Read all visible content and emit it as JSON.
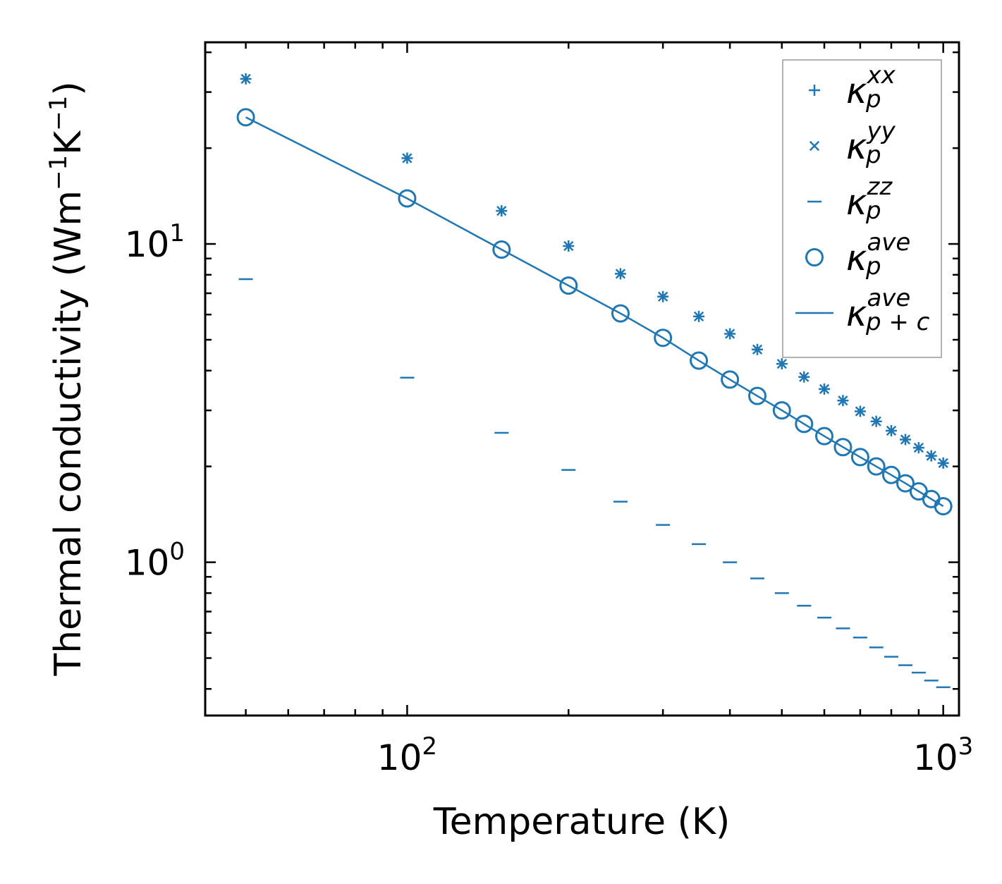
{
  "chart_data": {
    "type": "scatter",
    "xscale": "log",
    "yscale": "log",
    "xlabel": "Temperature (K)",
    "ylabel": "Thermal conductivity (Wm",
    "ylabel_parts": {
      "prefix": "Thermal conductivity (Wm",
      "exp1": "−1",
      "mid": "K",
      "exp2": "−1",
      "suffix": ")"
    },
    "xlim": [
      42,
      1070
    ],
    "ylim": [
      0.33,
      43
    ],
    "x_ticks": [
      {
        "value": 100,
        "base": "10",
        "exp": "2"
      },
      {
        "value": 1000,
        "base": "10",
        "exp": "3"
      }
    ],
    "y_ticks": [
      {
        "value": 1,
        "base": "10",
        "exp": "0"
      },
      {
        "value": 10,
        "base": "10",
        "exp": "1"
      }
    ],
    "color": "#1f77b4",
    "x": [
      50,
      100,
      150,
      200,
      250,
      300,
      350,
      400,
      450,
      500,
      550,
      600,
      650,
      700,
      750,
      800,
      850,
      900,
      950,
      1000
    ],
    "series": [
      {
        "name": "kappa_p_xx",
        "marker": "plus",
        "values": [
          33.0,
          18.6,
          12.7,
          9.85,
          8.06,
          6.83,
          5.92,
          5.22,
          4.66,
          4.2,
          3.82,
          3.5,
          3.22,
          2.98,
          2.77,
          2.59,
          2.43,
          2.29,
          2.16,
          2.05
        ]
      },
      {
        "name": "kappa_p_yy",
        "marker": "x",
        "values": [
          33.0,
          18.6,
          12.7,
          9.85,
          8.06,
          6.83,
          5.92,
          5.22,
          4.66,
          4.2,
          3.82,
          3.5,
          3.22,
          2.98,
          2.77,
          2.59,
          2.43,
          2.29,
          2.16,
          2.05
        ]
      },
      {
        "name": "kappa_p_zz",
        "marker": "hline",
        "values": [
          7.75,
          3.8,
          2.55,
          1.95,
          1.55,
          1.31,
          1.14,
          1.0,
          0.89,
          0.8,
          0.73,
          0.67,
          0.62,
          0.58,
          0.54,
          0.505,
          0.475,
          0.45,
          0.425,
          0.405
        ]
      },
      {
        "name": "kappa_p_ave",
        "marker": "circle",
        "values": [
          25.0,
          13.9,
          9.6,
          7.4,
          6.05,
          5.07,
          4.3,
          3.75,
          3.33,
          3.0,
          2.72,
          2.49,
          2.3,
          2.14,
          2.0,
          1.88,
          1.77,
          1.67,
          1.58,
          1.5
        ]
      },
      {
        "name": "kappa_p+c_ave",
        "marker": "line",
        "values": [
          25.0,
          13.9,
          9.6,
          7.4,
          6.05,
          5.07,
          4.3,
          3.75,
          3.33,
          3.0,
          2.72,
          2.49,
          2.3,
          2.14,
          2.0,
          1.88,
          1.77,
          1.67,
          1.58,
          1.5
        ]
      }
    ],
    "legend": {
      "placement": "top-right",
      "entries": [
        {
          "base": "κ",
          "sup": "xx",
          "sub": "p",
          "marker": "plus"
        },
        {
          "base": "κ",
          "sup": "yy",
          "sub": "p",
          "marker": "x"
        },
        {
          "base": "κ",
          "sup": "zz",
          "sub": "p",
          "marker": "hline"
        },
        {
          "base": "κ",
          "sup": "ave",
          "sub": "p",
          "marker": "circle"
        },
        {
          "base": "κ",
          "sup": "ave",
          "sub": "p + c",
          "marker": "line"
        }
      ]
    }
  }
}
